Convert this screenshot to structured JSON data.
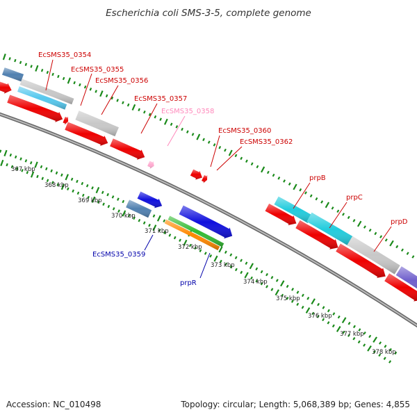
{
  "title": "Escherichia coli SMS-3-5, complete genome",
  "footer": {
    "accession": "Accession: NC_010498",
    "topology": "Topology: circular; Length: 5,068,389 bp; Genes: 4,855"
  },
  "colors": {
    "backbone": "#888888",
    "tick": "#1a8a1a",
    "label_red": "#cc0000",
    "label_pink": "#ff88bb",
    "label_blue": "#0000aa",
    "gene_red": "#ee0000",
    "gene_grey": "#c8c8c8",
    "gene_cyan": "#22ccdd",
    "gene_lightblue": "#55c8ee",
    "gene_steel": "#5080b0",
    "gene_blue": "#1010dd",
    "gene_green": "#33bb33",
    "gene_orange": "#ff8800",
    "gene_pink": "#ffaad0",
    "gene_purple": "#7060cc"
  },
  "scale_labels": [
    "367 kbp",
    "368 kbp",
    "369 kbp",
    "370 kbp",
    "371 kbp",
    "372 kbp",
    "373 kbp",
    "374 kbp",
    "375 kbp",
    "376 kbp",
    "377 kbp",
    "378 kbp"
  ],
  "gene_labels": [
    {
      "text": "EcSMS35_0354",
      "color": "label_red"
    },
    {
      "text": "EcSMS35_0355",
      "color": "label_red"
    },
    {
      "text": "EcSMS35_0356",
      "color": "label_red"
    },
    {
      "text": "EcSMS35_0357",
      "color": "label_red"
    },
    {
      "text": "EcSMS35_0358",
      "color": "label_pink"
    },
    {
      "text": "EcSMS35_0360",
      "color": "label_red"
    },
    {
      "text": "EcSMS35_0362",
      "color": "label_red"
    },
    {
      "text": "prpB",
      "color": "label_red"
    },
    {
      "text": "prpC",
      "color": "label_red"
    },
    {
      "text": "prpD",
      "color": "label_red"
    },
    {
      "text": "EcSMS35_0359",
      "color": "label_blue"
    },
    {
      "text": "prpR",
      "color": "label_blue"
    }
  ]
}
